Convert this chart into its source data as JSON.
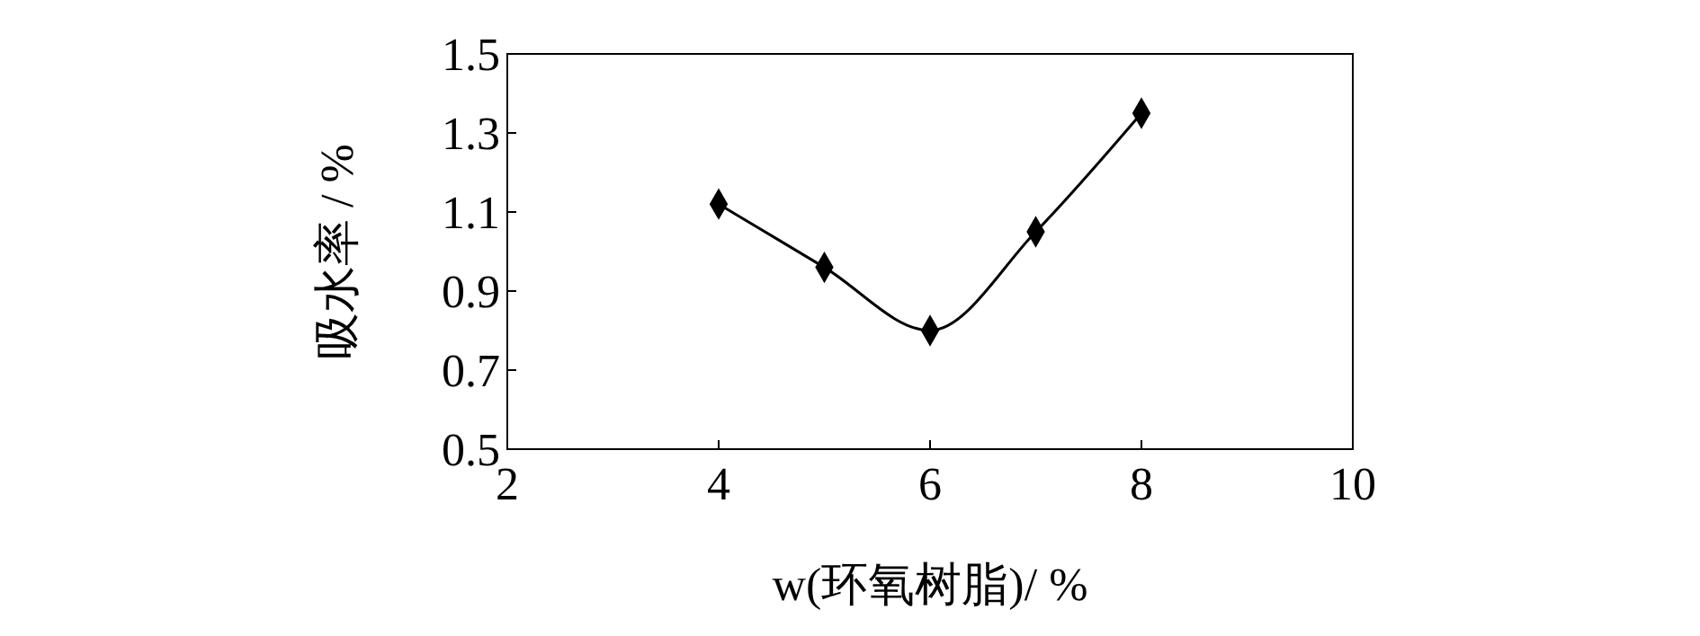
{
  "chart_data": {
    "type": "line",
    "xlabel": "w(环氧树脂)/ %",
    "ylabel": "吸水率 / %",
    "x": [
      4,
      5,
      6,
      7,
      8
    ],
    "series": [
      {
        "color": "#000000",
        "values": [
          1.12,
          0.96,
          0.8,
          1.05,
          1.35
        ]
      }
    ],
    "xlim": [
      2,
      10
    ],
    "xticks": [
      2,
      4,
      6,
      8,
      10
    ],
    "ylim": [
      0.5,
      1.5
    ],
    "yticks": [
      0.5,
      0.7,
      0.9,
      1.1,
      1.3,
      1.5
    ],
    "marker": "diamond",
    "line_style": "solid"
  }
}
